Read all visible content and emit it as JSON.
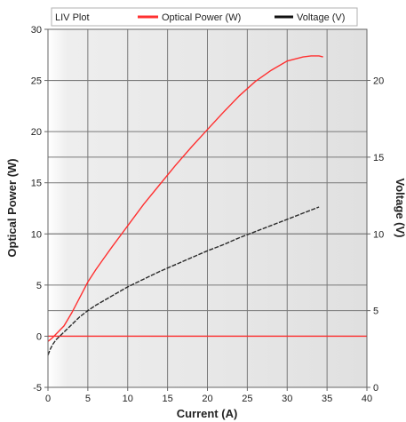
{
  "chart_data": {
    "type": "line",
    "title": "LIV Plot",
    "xlabel": "Current (A)",
    "ylabel_left": "Optical Power (W)",
    "ylabel_right": "Voltage (V)",
    "xlim": [
      0,
      40
    ],
    "ylim_left": [
      -5,
      30
    ],
    "ylim_right": [
      0,
      23.33
    ],
    "xticks": [
      "0",
      "5",
      "10",
      "15",
      "20",
      "25",
      "30",
      "35",
      "40"
    ],
    "yticks_left": [
      "-5",
      "0",
      "5",
      "10",
      "15",
      "20",
      "25",
      "30"
    ],
    "yticks_right": [
      "0",
      "5",
      "10",
      "15",
      "20"
    ],
    "grid": true,
    "legend_placement": "top",
    "colors": {
      "optical_power": "#ff3030",
      "voltage": "#2a2a2a",
      "plot_bg": "#e3e3e3",
      "grid": "#7a7a7a",
      "zero_line": "#ff3030"
    },
    "series": [
      {
        "name": "Optical Power (W)",
        "axis": "left",
        "x": [
          0,
          0.5,
          1,
          1.5,
          2,
          3,
          4,
          5,
          6,
          7,
          8,
          10,
          12,
          14,
          16,
          18,
          20,
          22,
          24,
          26,
          28,
          30,
          32,
          33,
          34,
          34.5
        ],
        "values": [
          -0.5,
          -0.2,
          0.2,
          0.6,
          1.0,
          2.3,
          3.8,
          5.3,
          6.5,
          7.6,
          8.7,
          10.8,
          12.9,
          14.8,
          16.7,
          18.5,
          20.2,
          21.9,
          23.5,
          24.9,
          26.0,
          26.9,
          27.3,
          27.4,
          27.4,
          27.3
        ]
      },
      {
        "name": "Voltage (V)",
        "axis": "right",
        "x": [
          0,
          0.3,
          0.6,
          1,
          2,
          3,
          4,
          5,
          6,
          8,
          10,
          12,
          14,
          16,
          18,
          20,
          22,
          24,
          26,
          28,
          30,
          32,
          34
        ],
        "values": [
          2.1,
          2.5,
          2.8,
          3.1,
          3.6,
          4.1,
          4.6,
          5.0,
          5.35,
          5.95,
          6.55,
          7.05,
          7.55,
          8.0,
          8.45,
          8.9,
          9.3,
          9.75,
          10.15,
          10.55,
          10.95,
          11.35,
          11.75
        ]
      }
    ],
    "annotations": [
      {
        "type": "hline",
        "axis": "left",
        "value": 0,
        "color": "#ff3030"
      }
    ]
  }
}
